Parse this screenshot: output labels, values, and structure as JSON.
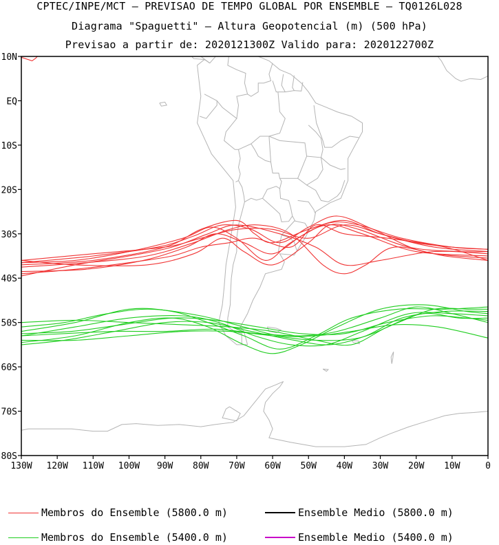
{
  "header": {
    "line1": "CPTEC/INPE/MCT – PREVISAO DE TEMPO GLOBAL POR ENSEMBLE – TQ0126L028",
    "line2": "Diagrama \"Spaguetti\" – Altura Geopotencial (m) (500 hPa)",
    "line3": "Previsao a partir de: 2020121300Z  Valido para: 2020122700Z"
  },
  "map": {
    "lon_range": [
      -130,
      0
    ],
    "lat_range": [
      -80,
      10
    ],
    "lat_ticks": [
      "10N",
      "EQ",
      "10S",
      "20S",
      "30S",
      "40S",
      "50S",
      "60S",
      "70S",
      "80S"
    ],
    "lon_ticks": [
      "130W",
      "120W",
      "110W",
      "100W",
      "90W",
      "80W",
      "70W",
      "60W",
      "50W",
      "40W",
      "30W",
      "20W",
      "10W",
      "0"
    ],
    "coast_color": "#b4b4b4"
  },
  "chart_data": {
    "type": "line",
    "series": [
      {
        "name": "Membros do Ensemble (5800.0 m)",
        "color": "#f03232",
        "members": [
          [
            [
              -130,
              -36
            ],
            [
              -110,
              -34.5
            ],
            [
              -90,
              -33
            ],
            [
              -80,
              -31
            ],
            [
              -70,
              -29
            ],
            [
              -60,
              -29
            ],
            [
              -50,
              -31
            ],
            [
              -40,
              -28
            ],
            [
              -30,
              -30
            ],
            [
              -20,
              -32
            ],
            [
              -10,
              -33
            ],
            [
              0,
              -33.5
            ]
          ],
          [
            [
              -130,
              -37
            ],
            [
              -110,
              -36
            ],
            [
              -90,
              -33
            ],
            [
              -80,
              -29
            ],
            [
              -70,
              -27
            ],
            [
              -65,
              -30
            ],
            [
              -60,
              -32
            ],
            [
              -50,
              -29
            ],
            [
              -40,
              -27
            ],
            [
              -30,
              -30
            ],
            [
              -15,
              -33
            ],
            [
              0,
              -34
            ]
          ],
          [
            [
              -130,
              -36.5
            ],
            [
              -115,
              -36
            ],
            [
              -100,
              -34
            ],
            [
              -85,
              -31
            ],
            [
              -77,
              -28.5
            ],
            [
              -70,
              -31
            ],
            [
              -62,
              -36
            ],
            [
              -55,
              -32
            ],
            [
              -45,
              -28
            ],
            [
              -35,
              -30
            ],
            [
              -20,
              -34
            ],
            [
              0,
              -35
            ]
          ],
          [
            [
              -130,
              -39.5
            ],
            [
              -115,
              -37
            ],
            [
              -100,
              -35
            ],
            [
              -88,
              -33
            ],
            [
              -78,
              -30
            ],
            [
              -70,
              -28
            ],
            [
              -58,
              -30
            ],
            [
              -48,
              -33
            ],
            [
              -40,
              -37
            ],
            [
              -30,
              -36
            ],
            [
              -15,
              -34
            ],
            [
              0,
              -34.5
            ]
          ],
          [
            [
              -130,
              -39
            ],
            [
              -115,
              -38
            ],
            [
              -100,
              -36.5
            ],
            [
              -88,
              -35
            ],
            [
              -80,
              -33
            ],
            [
              -72,
              -32
            ],
            [
              -65,
              -31
            ],
            [
              -55,
              -33
            ],
            [
              -48,
              -28
            ],
            [
              -40,
              -30
            ],
            [
              -28,
              -31
            ],
            [
              -12,
              -33
            ],
            [
              0,
              -36
            ]
          ],
          [
            [
              -130,
              -36
            ],
            [
              -115,
              -37
            ],
            [
              -95,
              -37
            ],
            [
              -82,
              -34.5
            ],
            [
              -74,
              -31
            ],
            [
              -68,
              -34
            ],
            [
              -60,
              -37
            ],
            [
              -50,
              -32
            ],
            [
              -44,
              -28
            ],
            [
              -36,
              -29
            ],
            [
              -22,
              -33
            ],
            [
              -8,
              -34
            ],
            [
              0,
              -34
            ]
          ],
          [
            [
              -130,
              -37.5
            ],
            [
              -112,
              -36.5
            ],
            [
              -95,
              -35
            ],
            [
              -82,
              -32
            ],
            [
              -72,
              -29
            ],
            [
              -64,
              -28
            ],
            [
              -55,
              -30
            ],
            [
              -46,
              -37
            ],
            [
              -40,
              -39
            ],
            [
              -34,
              -37
            ],
            [
              -26,
              -33
            ],
            [
              -12,
              -35
            ],
            [
              0,
              -36
            ]
          ],
          [
            [
              -130,
              -36.5
            ],
            [
              -110,
              -35
            ],
            [
              -92,
              -33
            ],
            [
              -82,
              -30.5
            ],
            [
              -74,
              -28
            ],
            [
              -66,
              -29
            ],
            [
              -58,
              -32
            ],
            [
              -50,
              -28.5
            ],
            [
              -42,
              -26
            ],
            [
              -32,
              -29
            ],
            [
              -18,
              -34
            ],
            [
              0,
              -35.5
            ]
          ],
          [
            [
              -130,
              -38.5
            ],
            [
              -112,
              -38
            ],
            [
              -96,
              -36
            ],
            [
              -84,
              -33
            ],
            [
              -76,
              -30
            ],
            [
              -68,
              -32
            ],
            [
              -60,
              -34.5
            ],
            [
              -52,
              -30.5
            ],
            [
              -44,
              -27.5
            ],
            [
              -36,
              -28
            ],
            [
              -24,
              -31
            ],
            [
              -10,
              -33
            ],
            [
              0,
              -33.5
            ]
          ]
        ]
      },
      {
        "name": "Membros do Ensemble (5400.0 m)",
        "color": "#1ecd1e",
        "members": [
          [
            [
              -130,
              -52
            ],
            [
              -115,
              -50
            ],
            [
              -100,
              -47
            ],
            [
              -88,
              -47.5
            ],
            [
              -78,
              -50
            ],
            [
              -68,
              -53
            ],
            [
              -58,
              -56
            ],
            [
              -48,
              -53
            ],
            [
              -38,
              -49
            ],
            [
              -25,
              -47
            ],
            [
              -12,
              -47
            ],
            [
              0,
              -46.5
            ]
          ],
          [
            [
              -130,
              -53
            ],
            [
              -115,
              -51
            ],
            [
              -100,
              -49
            ],
            [
              -85,
              -48.5
            ],
            [
              -75,
              -50
            ],
            [
              -65,
              -53
            ],
            [
              -55,
              -55
            ],
            [
              -45,
              -55
            ],
            [
              -35,
              -52
            ],
            [
              -22,
              -48
            ],
            [
              -10,
              -48
            ],
            [
              0,
              -48.5
            ]
          ],
          [
            [
              -130,
              -50
            ],
            [
              -115,
              -49.5
            ],
            [
              -100,
              -50
            ],
            [
              -85,
              -50.5
            ],
            [
              -72,
              -51
            ],
            [
              -60,
              -52
            ],
            [
              -48,
              -54
            ],
            [
              -38,
              -55
            ],
            [
              -28,
              -51
            ],
            [
              -18,
              -48
            ],
            [
              -8,
              -49
            ],
            [
              0,
              -49
            ]
          ],
          [
            [
              -130,
              -54
            ],
            [
              -115,
              -54
            ],
            [
              -100,
              -53
            ],
            [
              -85,
              -52
            ],
            [
              -72,
              -52
            ],
            [
              -60,
              -53
            ],
            [
              -48,
              -54
            ],
            [
              -36,
              -53.5
            ],
            [
              -25,
              -50
            ],
            [
              -15,
              -47
            ],
            [
              -5,
              -47
            ],
            [
              0,
              -47
            ]
          ],
          [
            [
              -130,
              -55
            ],
            [
              -118,
              -54
            ],
            [
              -104,
              -52
            ],
            [
              -90,
              -50
            ],
            [
              -78,
              -50
            ],
            [
              -66,
              -52
            ],
            [
              -54,
              -54
            ],
            [
              -44,
              -55
            ],
            [
              -34,
              -53
            ],
            [
              -24,
              -49
            ],
            [
              -12,
              -47.5
            ],
            [
              0,
              -47.5
            ]
          ],
          [
            [
              -130,
              -53
            ],
            [
              -118,
              -52.5
            ],
            [
              -104,
              -52
            ],
            [
              -90,
              -52
            ],
            [
              -76,
              -51.5
            ],
            [
              -64,
              -52.5
            ],
            [
              -52,
              -53
            ],
            [
              -42,
              -52
            ],
            [
              -30,
              -49
            ],
            [
              -20,
              -46.5
            ],
            [
              -10,
              -48
            ],
            [
              0,
              -50
            ]
          ],
          [
            [
              -130,
              -51
            ],
            [
              -118,
              -50
            ],
            [
              -106,
              -48
            ],
            [
              -94,
              -47
            ],
            [
              -80,
              -48.5
            ],
            [
              -68,
              -51
            ],
            [
              -58,
              -53
            ],
            [
              -48,
              -53
            ],
            [
              -38,
              -52
            ],
            [
              -26,
              -50.5
            ],
            [
              -14,
              -51
            ],
            [
              0,
              -53.5
            ]
          ],
          [
            [
              -130,
              -52.5
            ],
            [
              -116,
              -52
            ],
            [
              -102,
              -50.5
            ],
            [
              -88,
              -49
            ],
            [
              -76,
              -49.5
            ],
            [
              -64,
              -51
            ],
            [
              -52,
              -52.5
            ],
            [
              -40,
              -52.5
            ],
            [
              -28,
              -50
            ],
            [
              -16,
              -48.5
            ],
            [
              -6,
              -49
            ],
            [
              0,
              -49.5
            ]
          ],
          [
            [
              -130,
              -54.5
            ],
            [
              -115,
              -53
            ],
            [
              -100,
              -50
            ],
            [
              -88,
              -49
            ],
            [
              -78,
              -51
            ],
            [
              -68,
              -55
            ],
            [
              -60,
              -57
            ],
            [
              -52,
              -55
            ],
            [
              -42,
              -51
            ],
            [
              -30,
              -47
            ],
            [
              -18,
              -46
            ],
            [
              -6,
              -47.5
            ],
            [
              0,
              -48
            ]
          ]
        ]
      }
    ]
  },
  "legend": {
    "item1": "Membros do Ensemble (5800.0 m)",
    "item2": "Ensemble Medio (5800.0 m)",
    "item3": "Membros do Ensemble (5400.0 m)",
    "item4": "Ensemble Medio (5400.0 m)",
    "color1": "#f03232",
    "color2": "#000000",
    "color3": "#1ecd1e",
    "color4": "#c800c8"
  }
}
